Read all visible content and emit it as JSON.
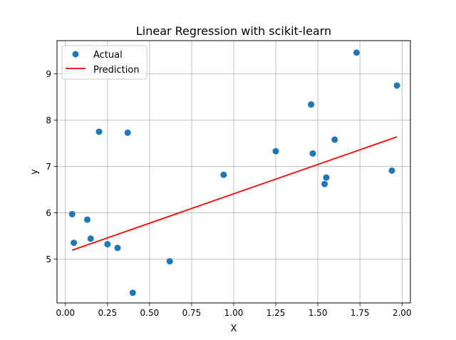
{
  "chart_data": {
    "type": "scatter",
    "title": "Linear Regression with scikit-learn",
    "xlabel": "X",
    "ylabel": "y",
    "xlim": [
      -0.05,
      2.05
    ],
    "ylim": [
      4.05,
      9.72
    ],
    "x_ticks": [
      0.0,
      0.25,
      0.5,
      0.75,
      1.0,
      1.25,
      1.5,
      1.75,
      2.0
    ],
    "x_tick_labels": [
      "0.00",
      "0.25",
      "0.50",
      "0.75",
      "1.00",
      "1.25",
      "1.50",
      "1.75",
      "2.00"
    ],
    "y_ticks": [
      5,
      6,
      7,
      8,
      9
    ],
    "y_tick_labels": [
      "5",
      "6",
      "7",
      "8",
      "9"
    ],
    "grid": true,
    "legend_position": "top-left",
    "series": [
      {
        "name": "Actual",
        "kind": "scatter",
        "color": "#1f77b4",
        "points": [
          {
            "x": 0.04,
            "y": 5.97
          },
          {
            "x": 0.05,
            "y": 5.35
          },
          {
            "x": 0.13,
            "y": 5.85
          },
          {
            "x": 0.15,
            "y": 5.44
          },
          {
            "x": 0.2,
            "y": 7.75
          },
          {
            "x": 0.25,
            "y": 5.32
          },
          {
            "x": 0.31,
            "y": 5.24
          },
          {
            "x": 0.37,
            "y": 7.73
          },
          {
            "x": 0.4,
            "y": 4.27
          },
          {
            "x": 0.62,
            "y": 4.95
          },
          {
            "x": 0.94,
            "y": 6.82
          },
          {
            "x": 1.25,
            "y": 7.33
          },
          {
            "x": 1.46,
            "y": 8.34
          },
          {
            "x": 1.47,
            "y": 7.28
          },
          {
            "x": 1.54,
            "y": 6.62
          },
          {
            "x": 1.55,
            "y": 6.76
          },
          {
            "x": 1.6,
            "y": 7.58
          },
          {
            "x": 1.73,
            "y": 9.46
          },
          {
            "x": 1.94,
            "y": 6.91
          },
          {
            "x": 1.97,
            "y": 8.75
          }
        ]
      },
      {
        "name": "Prediction",
        "kind": "line",
        "color": "#ff0000",
        "points": [
          {
            "x": 0.04,
            "y": 5.19
          },
          {
            "x": 1.97,
            "y": 7.64
          }
        ]
      }
    ]
  }
}
